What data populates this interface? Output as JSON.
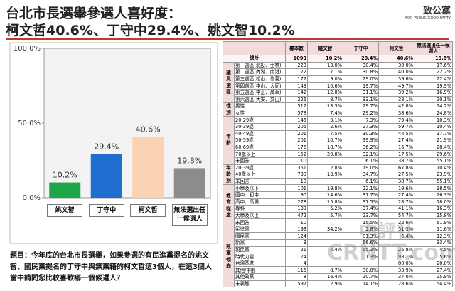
{
  "header": {
    "title_lines": [
      "台北市長選舉參選人喜好度：",
      "柯文哲40.6%、丁守中29.4%、姚文智10.2%"
    ],
    "logo": "致公黨",
    "logo_sub": "FOR PUBLIC GOOD PARTY"
  },
  "chart_data": {
    "type": "bar",
    "categories": [
      "姚文智",
      "丁守中",
      "柯文哲",
      "無法選出任一候選人"
    ],
    "values": [
      10.2,
      29.4,
      40.6,
      19.8
    ],
    "value_labels": [
      "10.2%",
      "29.4%",
      "40.6%",
      "19.8%"
    ],
    "colors": [
      "#1fa64a",
      "#1f6fd0",
      "#fbd2b4",
      "#8c8c8c"
    ],
    "ylim": [
      0,
      100
    ],
    "yticks": [
      {
        "value": 0,
        "label": "0.0%"
      },
      {
        "value": 50,
        "label": "50.0%"
      },
      {
        "value": 100,
        "label": "100.0%"
      }
    ]
  },
  "question": {
    "label": "題目：",
    "text": "今年底的台北市長選舉，如果參選的有民進黨提名的姚文智、國民黨提名的丁守中與無黨籍的柯文哲這3個人，在這3個人當中請問您比較喜歡哪一個候選人？"
  },
  "table": {
    "columns": [
      "樣本數",
      "姚文智",
      "丁守中",
      "柯文哲",
      "無法選出任一候選人"
    ],
    "total": [
      "總計",
      1090,
      "10.2%",
      "29.4%",
      "40.6%",
      "19.8%"
    ],
    "groups": [
      {
        "name": "議員選區",
        "rows": [
          [
            "第一選區(北投、士林)",
            229,
            "13.0%",
            "30.4%",
            "39.0%",
            "17.6%"
          ],
          [
            "第二選區(內湖、南港)",
            172,
            "7.1%",
            "30.8%",
            "40.0%",
            "22.2%"
          ],
          [
            "第三選區(松山、信義)",
            172,
            "9.0%",
            "29.0%",
            "39.6%",
            "22.4%"
          ],
          [
            "第四選區(中山、大同)",
            149,
            "10.6%",
            "19.7%",
            "49.7%",
            "19.9%"
          ],
          [
            "第五選區(中正、萬華)",
            142,
            "12.8%",
            "31.1%",
            "39.2%",
            "16.9%"
          ],
          [
            "第六選區(大安、文山)",
            226,
            "8.7%",
            "33.1%",
            "38.1%",
            "20.1%"
          ]
        ]
      },
      {
        "name": "性別",
        "rows": [
          [
            "男性",
            512,
            "13.3%",
            "29.7%",
            "42.8%",
            "14.2%"
          ],
          [
            "女性",
            578,
            "7.4%",
            "29.2%",
            "38.6%",
            "24.8%"
          ]
        ]
      },
      {
        "name": "年齡",
        "rows": [
          [
            "20-29歲",
            145,
            "3.1%",
            "7.3%",
            "79.4%",
            "10.3%"
          ],
          [
            "30-39歲",
            205,
            "2.6%",
            "27.3%",
            "59.7%",
            "10.4%"
          ],
          [
            "40-49歲",
            201,
            "7.5%",
            "30.3%",
            "44.5%",
            "17.7%"
          ],
          [
            "50-59歲",
            201,
            "10.7%",
            "39.9%",
            "27.4%",
            "21.9%"
          ],
          [
            "60-69歲",
            176,
            "18.7%",
            "36.2%",
            "16.7%",
            "28.4%"
          ],
          [
            "70歲以上",
            152,
            "20.8%",
            "32.1%",
            "17.5%",
            "29.6%"
          ],
          [
            "未回答",
            10,
            null,
            "6.1%",
            "38.7%",
            "55.1%"
          ]
        ]
      },
      {
        "name": "年齡別",
        "rows": [
          [
            "20-39歲",
            351,
            "2.8%",
            "19.0%",
            "67.8%",
            "10.4%"
          ],
          [
            "40歲以上",
            730,
            "13.9%",
            "34.7%",
            "27.5%",
            "23.9%"
          ],
          [
            "未回答",
            10,
            null,
            "6.1%",
            "38.7%",
            "55.1%"
          ]
        ]
      },
      {
        "name": "教育程度",
        "rows": [
          [
            "小學及以下",
            101,
            "19.8%",
            "22.1%",
            "19.6%",
            "38.5%"
          ],
          [
            "國中、初中",
            90,
            "14.6%",
            "31.7%",
            "27.4%",
            "26.3%"
          ],
          [
            "高中、高職",
            278,
            "15.8%",
            "37.5%",
            "28.7%",
            "18.0%"
          ],
          [
            "專科",
            139,
            "5.2%",
            "37.4%",
            "41.1%",
            "16.3%"
          ],
          [
            "大學及以上",
            472,
            "5.7%",
            "23.7%",
            "54.7%",
            "15.8%"
          ],
          [
            "未回答",
            10,
            null,
            "15.5%",
            "22.6%",
            "61.9%"
          ]
        ]
      },
      {
        "name": "政黨傾向",
        "rows": [
          [
            "民進黨",
            193,
            "34.2%",
            "2.8%",
            "51.3%",
            "11.6%"
          ],
          [
            "國民黨",
            124,
            null,
            "81.3%",
            "6.4%",
            "12.3%"
          ],
          [
            "新黨",
            3,
            null,
            "66.6%",
            null,
            "33.4%"
          ],
          [
            "親民黨",
            21,
            "4.4%",
            "65.3%",
            "25.8%",
            "4.5%"
          ],
          [
            "時代力量",
            24,
            null,
            "1.3%",
            "93.1%",
            "5.6%"
          ],
          [
            "台灣基進",
            4,
            null,
            null,
            "80.0%",
            "20.0%"
          ],
          [
            "其他/中間",
            116,
            "8.7%",
            "30.0%",
            "33.9%",
            "27.4%"
          ],
          [
            "其他政黨",
            8,
            "16.4%",
            "20.7%",
            "37.0%",
            "25.9%"
          ],
          [
            "未表態",
            597,
            "2.9%",
            "14.1%",
            "28.6%",
            "54.4%"
          ]
        ]
      }
    ]
  },
  "watermark": [
    "中評社",
    "CRNTT.com"
  ]
}
